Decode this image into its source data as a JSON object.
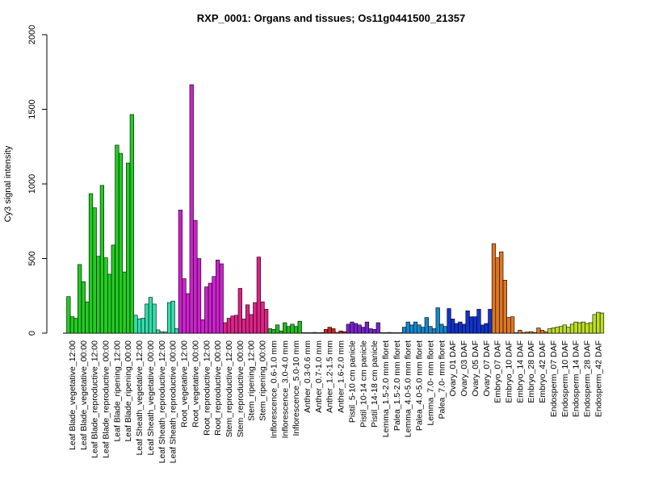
{
  "chart_data": {
    "type": "bar",
    "title": "RXP_0001: Organs and tissues; Os11g0441500_21357",
    "ylabel": "Cy3 signal intensity",
    "xlabel": "",
    "ylim": [
      0,
      2000
    ],
    "yticks": [
      0,
      500,
      1000,
      1500,
      2000
    ],
    "grid": false,
    "legend": "none",
    "groups": [
      {
        "label": "Leaf Blade_vegetative_12:00",
        "color": "#22cc22",
        "values": [
          245,
          110,
          100
        ]
      },
      {
        "label": "Leaf Blade_vegetative_00:00",
        "color": "#22cc22",
        "values": [
          460,
          345,
          210
        ]
      },
      {
        "label": "Leaf Blade_reproductive_12:00",
        "color": "#22cc22",
        "values": [
          935,
          840,
          515
        ]
      },
      {
        "label": "Leaf Blade_reproductive_00:00",
        "color": "#22cc22",
        "values": [
          990,
          505,
          395
        ]
      },
      {
        "label": "Leaf Blade_ripening_12:00",
        "color": "#22cc22",
        "values": [
          590,
          1260,
          1205
        ]
      },
      {
        "label": "Leaf Blade_ripening_00:00",
        "color": "#22cc22",
        "values": [
          410,
          1140,
          1465
        ]
      },
      {
        "label": "Leaf Sheath_vegetative_12:00",
        "color": "#33ddaa",
        "values": [
          120,
          95,
          100
        ]
      },
      {
        "label": "Leaf Sheath_vegetative_00:00",
        "color": "#33ddaa",
        "values": [
          195,
          240,
          195
        ]
      },
      {
        "label": "Leaf Sheath_reproductive_12:00",
        "color": "#33ddaa",
        "values": [
          22,
          10,
          8
        ]
      },
      {
        "label": "Leaf Sheath_reproductive_00:00",
        "color": "#33ddaa",
        "values": [
          205,
          215,
          30
        ]
      },
      {
        "label": "Root_vegetative_12:00",
        "color": "#cc22cc",
        "values": [
          825,
          365,
          265
        ]
      },
      {
        "label": "Root_vegetative_00:00",
        "color": "#cc22cc",
        "values": [
          1665,
          755,
          500
        ]
      },
      {
        "label": "Root_reproductive_12:00",
        "color": "#cc22cc",
        "values": [
          90,
          310,
          335
        ]
      },
      {
        "label": "Root_reproductive_00:00",
        "color": "#cc22cc",
        "values": [
          380,
          490,
          465
        ]
      },
      {
        "label": "Stem_reproductive_12:00",
        "color": "#dd2288",
        "values": [
          70,
          100,
          115
        ]
      },
      {
        "label": "Stem_reproductive_00:00",
        "color": "#dd2288",
        "values": [
          120,
          300,
          95
        ]
      },
      {
        "label": "Stem_ripening_12:00",
        "color": "#dd2288",
        "values": [
          190,
          125,
          205
        ]
      },
      {
        "label": "Stem_ripening_00:00",
        "color": "#dd2288",
        "values": [
          510,
          210,
          160
        ]
      },
      {
        "label": "Inflorescence_0.6-1.0 mm",
        "color": "#22bb22",
        "values": [
          30,
          25,
          55
        ]
      },
      {
        "label": "Inflorescence_3.0-4.0 mm",
        "color": "#22bb22",
        "values": [
          15,
          70,
          45
        ]
      },
      {
        "label": "Inflorescence_5.0-10 mm",
        "color": "#22bb22",
        "values": [
          60,
          45,
          80
        ]
      },
      {
        "label": "Anther_0.3-0.6 mm",
        "color": "#cc2222",
        "values": [
          3,
          3,
          3
        ]
      },
      {
        "label": "Anther_0.7-1.0 mm",
        "color": "#cc2222",
        "values": [
          5,
          3,
          4
        ]
      },
      {
        "label": "Anther_1.2-1.5 mm",
        "color": "#cc2222",
        "values": [
          25,
          40,
          30
        ]
      },
      {
        "label": "Anther_1.6-2.0 mm",
        "color": "#cc2222",
        "values": [
          5,
          15,
          10
        ]
      },
      {
        "label": "Pistil_5-10 cm panicle",
        "color": "#7722cc",
        "values": [
          60,
          75,
          65
        ]
      },
      {
        "label": "Pistil_10-14 cm panicle",
        "color": "#7722cc",
        "values": [
          55,
          40,
          75
        ]
      },
      {
        "label": "Pistil_14-18 cm panicle",
        "color": "#7722cc",
        "values": [
          30,
          25,
          70
        ]
      },
      {
        "label": "Lemma_1.5-2.0 mm floret",
        "color": "#1188cc",
        "values": [
          3,
          3,
          5
        ]
      },
      {
        "label": "Palea_1.5-2.0 mm floret",
        "color": "#1188cc",
        "values": [
          3,
          3,
          3
        ]
      },
      {
        "label": "Lemma_4.0-5.0 mm floret",
        "color": "#1188cc",
        "values": [
          40,
          75,
          55
        ]
      },
      {
        "label": "Palea_4.0-5.0 mm floret",
        "color": "#1188cc",
        "values": [
          75,
          55,
          40
        ]
      },
      {
        "label": "Lemma_7.0- mm floret",
        "color": "#1188cc",
        "values": [
          105,
          45,
          30
        ]
      },
      {
        "label": "Palea_7.0- mm floret",
        "color": "#1188cc",
        "values": [
          170,
          60,
          45
        ]
      },
      {
        "label": "Ovary_01 DAF",
        "color": "#1133cc",
        "values": [
          165,
          95,
          65
        ]
      },
      {
        "label": "Ovary_03 DAF",
        "color": "#1133cc",
        "values": [
          75,
          60,
          150
        ]
      },
      {
        "label": "Ovary_05 DAF",
        "color": "#1133cc",
        "values": [
          110,
          110,
          160
        ]
      },
      {
        "label": "Ovary_07 DAF",
        "color": "#1133cc",
        "values": [
          55,
          65,
          160
        ]
      },
      {
        "label": "Embryo_07 DAF",
        "color": "#dd7722",
        "values": [
          600,
          505,
          545
        ]
      },
      {
        "label": "Embryo_10 DAF",
        "color": "#dd7722",
        "values": [
          355,
          105,
          110
        ]
      },
      {
        "label": "Embryo_14 DAF",
        "color": "#dd7722",
        "values": [
          3,
          20,
          5
        ]
      },
      {
        "label": "Embryo_28 DAF",
        "color": "#dd7722",
        "values": [
          8,
          10,
          5
        ]
      },
      {
        "label": "Embryo_42 DAF",
        "color": "#dd7722",
        "values": [
          35,
          20,
          10
        ]
      },
      {
        "label": "Endosperm_07 DAF",
        "color": "#bbdd22",
        "values": [
          30,
          35,
          40
        ]
      },
      {
        "label": "Endosperm_10 DAF",
        "color": "#bbdd22",
        "values": [
          45,
          55,
          40
        ]
      },
      {
        "label": "Endosperm_14 DAF",
        "color": "#bbdd22",
        "values": [
          60,
          75,
          70
        ]
      },
      {
        "label": "Endosperm_28 DAF",
        "color": "#bbdd22",
        "values": [
          75,
          65,
          70
        ]
      },
      {
        "label": "Endosperm_42 DAF",
        "color": "#bbdd22",
        "values": [
          125,
          140,
          135
        ]
      }
    ]
  }
}
